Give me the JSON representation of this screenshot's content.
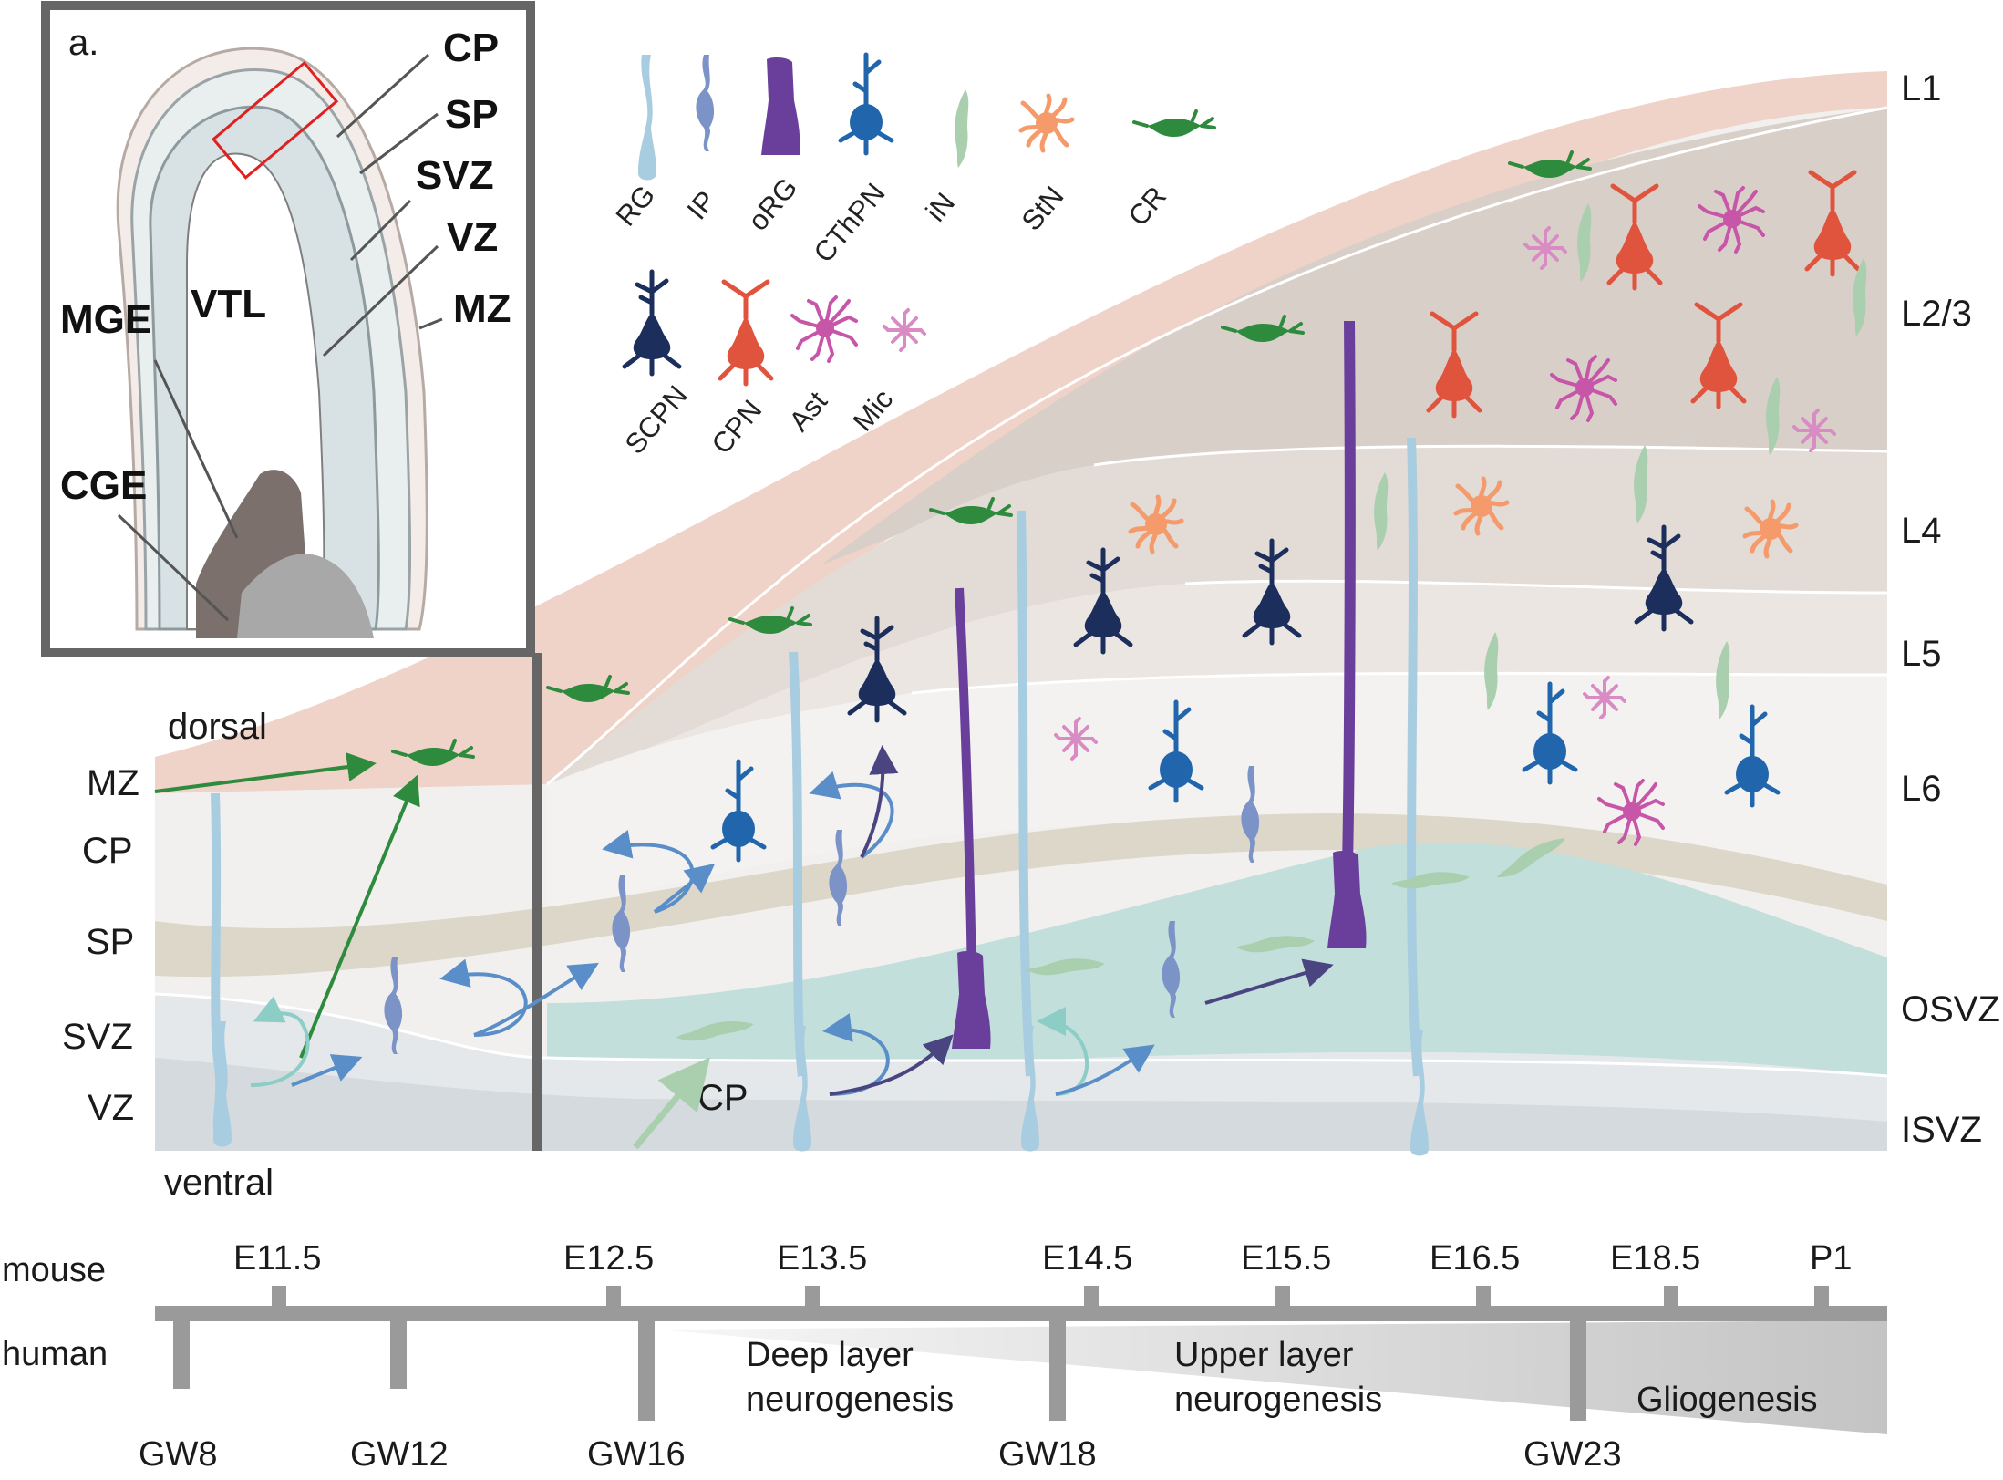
{
  "panel_label": "a.",
  "inset": {
    "labels": {
      "cp": "CP",
      "sp": "SP",
      "svz": "SVZ",
      "vz": "VZ",
      "mz": "MZ",
      "vtl": "VTL",
      "mge": "MGE",
      "cge": "CGE"
    }
  },
  "orientation": {
    "dorsal": "dorsal",
    "ventral": "ventral"
  },
  "left_zones": {
    "mz": "MZ",
    "cp": "CP",
    "sp": "SP",
    "svz": "SVZ",
    "vz": "VZ"
  },
  "cp_inner": "CP",
  "right_layers": {
    "l1": "L1",
    "l23": "L2/3",
    "l4": "L4",
    "l5": "L5",
    "l6": "L6",
    "osvz": "OSVZ",
    "isvz": "ISVZ"
  },
  "legend": {
    "rg": "RG",
    "ip": "IP",
    "org": "oRG",
    "cthpn": "CThPN",
    "in": "iN",
    "stn": "StN",
    "cr": "CR",
    "scpn": "SCPN",
    "cpn": "CPN",
    "ast": "Ast",
    "mic": "Mic"
  },
  "timeline": {
    "mouse_label": "mouse",
    "human_label": "human",
    "mouse_ticks": [
      "E11.5",
      "E12.5",
      "E13.5",
      "E14.5",
      "E15.5",
      "E16.5",
      "E18.5",
      "P1"
    ],
    "human_ticks": [
      "GW8",
      "GW12",
      "GW16",
      "GW18",
      "GW23"
    ],
    "phases": {
      "deep_1": "Deep layer",
      "deep_2": "neurogenesis",
      "upper_1": "Upper layer",
      "upper_2": "neurogenesis",
      "glio": "Gliogenesis"
    }
  },
  "colors": {
    "rg": "#a9cde0",
    "ip": "#7b93c6",
    "org": "#6a3f9c",
    "cthpn": "#2166ac",
    "in": "#a9cfae",
    "stn": "#f59a6a",
    "cr": "#2e8b3e",
    "scpn": "#1c2e5c",
    "cpn": "#e0533d",
    "ast": "#c856a8",
    "mic": "#d98cc4",
    "l1_band": "#efd2c8",
    "upper_layers": "#d8cfc9",
    "osvz_band": "#c2dfdc",
    "sp_band": "#dcd7c9",
    "timeline_bar": "#9a9a9a"
  }
}
